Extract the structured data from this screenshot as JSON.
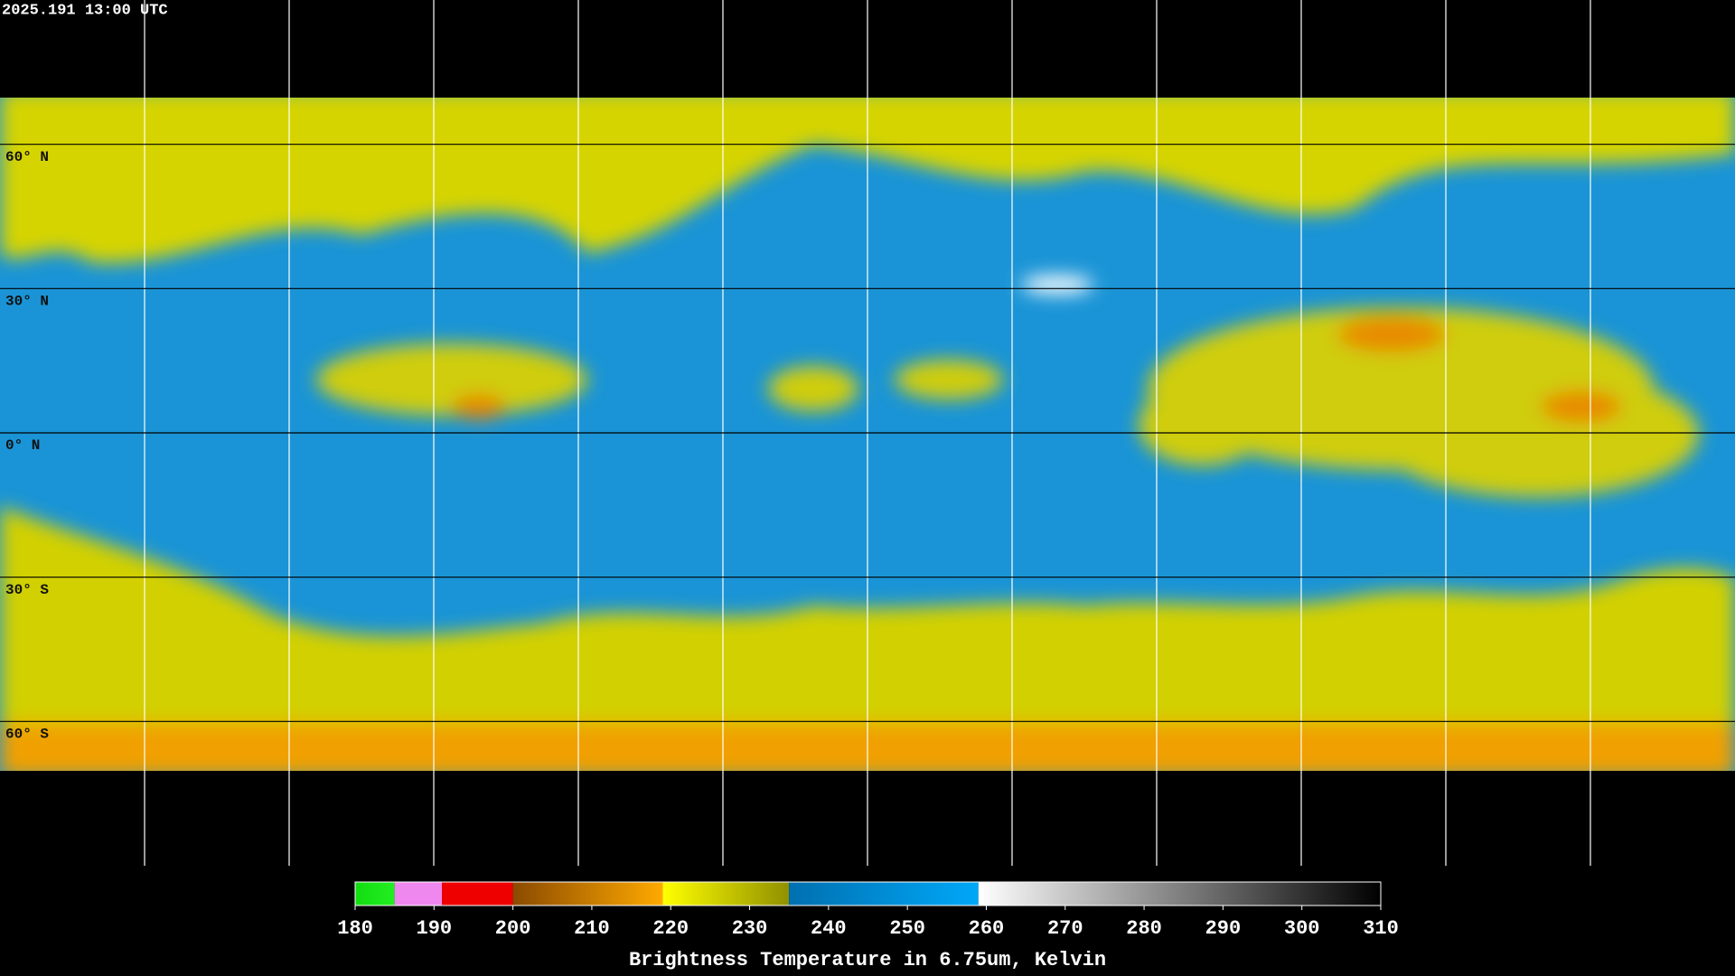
{
  "map": {
    "timestamp": "2025.191 13:00 UTC",
    "lat_lines": [
      {
        "value": 60,
        "label": "60° N"
      },
      {
        "value": 30,
        "label": "30° N"
      },
      {
        "value": 0,
        "label": "0° N"
      },
      {
        "value": -30,
        "label": "30° S"
      },
      {
        "value": -60,
        "label": "60° S"
      }
    ],
    "lon_lines": [
      -150,
      -120,
      -90,
      -60,
      -30,
      0,
      30,
      60,
      90,
      120,
      150
    ]
  },
  "colorbar": {
    "title": "Brightness Temperature in 6.75um, Kelvin",
    "range": [
      180,
      310
    ],
    "ticks": [
      180,
      190,
      200,
      210,
      220,
      230,
      240,
      250,
      260,
      270,
      280,
      290,
      300,
      310
    ],
    "segments": [
      {
        "from": 180,
        "to": 185,
        "colors": [
          "#11dd11",
          "#22ee22"
        ]
      },
      {
        "from": 185,
        "to": 191,
        "colors": [
          "#ee88ee",
          "#ee88ee"
        ]
      },
      {
        "from": 191,
        "to": 200,
        "colors": [
          "#ee0000",
          "#ee0000"
        ]
      },
      {
        "from": 200,
        "to": 219,
        "colors": [
          "#8b4a00",
          "#ffaa00"
        ]
      },
      {
        "from": 219,
        "to": 235,
        "colors": [
          "#ffff00",
          "#909000"
        ]
      },
      {
        "from": 235,
        "to": 259,
        "colors": [
          "#0070b0",
          "#00a8f8"
        ]
      },
      {
        "from": 259,
        "to": 310,
        "colors": [
          "#ffffff",
          "#000000"
        ]
      }
    ]
  }
}
